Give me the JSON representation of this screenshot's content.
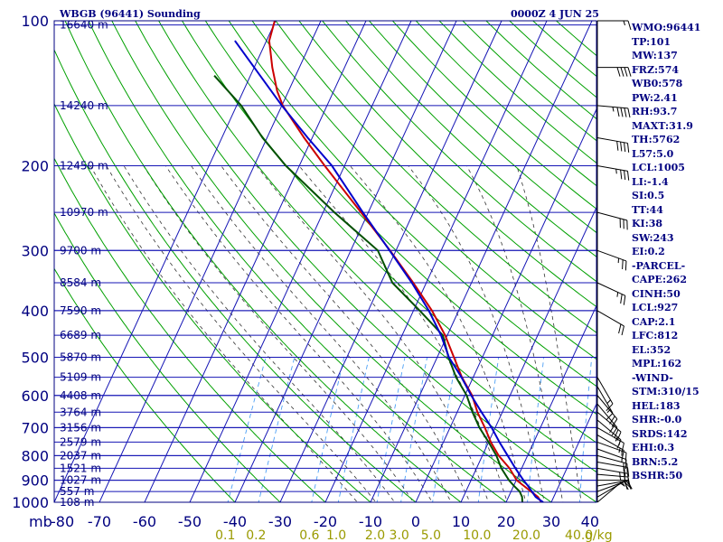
{
  "header": {
    "station": "WBGB (96441) Sounding",
    "time": "0000Z  4 JUN 25"
  },
  "indices": [
    "WMO:96441",
    "TP:101",
    "MW:137",
    "FRZ:574",
    "WB0:578",
    "PW:2.41",
    "RH:93.7",
    "MAXT:31.9",
    "TH:5762",
    "L57:5.0",
    "LCL:1005",
    "LI:-1.4",
    "SI:0.5",
    "TT:44",
    "KI:38",
    "SW:243",
    "EI:0.2",
    "-PARCEL-",
    "CAPE:262",
    "CINH:50",
    "LCL:927",
    "CAP:2.1",
    "LFC:812",
    "EL:352",
    "MPL:162",
    "-WIND-",
    "STM:310/15",
    "HEL:183",
    "SHR:-0.0",
    "SRDS:142",
    "EHI:0.3",
    "BRN:5.2",
    "BSHR:50"
  ],
  "colors": {
    "frame": "#000080",
    "isobar": "#1515b5",
    "dry_adiabat": "#00a000",
    "moist_adiabat": "#333333",
    "mixing_ratio": "#4da0f5",
    "temperature": "#cc0000",
    "dewpoint": "#005000",
    "parcel": "#0000cc",
    "wind": "#000000",
    "mixing_label": "#9a9a00"
  },
  "chart_data": {
    "type": "skew-T log-P sounding",
    "title": "WBGB (96441) Sounding",
    "xlabel": "",
    "ylabel": "mb",
    "temperature_ticks": [
      "-80",
      "-70",
      "-60",
      "-50",
      "-40",
      "-30",
      "-20",
      "-10",
      "0",
      "10",
      "20",
      "30",
      "40"
    ],
    "pressure_ticks": [
      "100",
      "200",
      "300",
      "400",
      "500",
      "600",
      "700",
      "800",
      "900",
      "1000"
    ],
    "ylim": [
      1000,
      100
    ],
    "xlim": [
      -80,
      40
    ],
    "height_labels": [
      {
        "p": 102,
        "label": "16640 m"
      },
      {
        "p": 150,
        "label": "14240 m"
      },
      {
        "p": 200,
        "label": "12450 m"
      },
      {
        "p": 250,
        "label": "10970 m"
      },
      {
        "p": 300,
        "label": "9700 m"
      },
      {
        "p": 350,
        "label": "8584 m"
      },
      {
        "p": 400,
        "label": "7590 m"
      },
      {
        "p": 450,
        "label": "6689 m"
      },
      {
        "p": 500,
        "label": "5870 m"
      },
      {
        "p": 550,
        "label": "5109 m"
      },
      {
        "p": 600,
        "label": "4408 m"
      },
      {
        "p": 650,
        "label": "3764 m"
      },
      {
        "p": 700,
        "label": "3156 m"
      },
      {
        "p": 750,
        "label": "2579 m"
      },
      {
        "p": 800,
        "label": "2037 m"
      },
      {
        "p": 850,
        "label": "1521 m"
      },
      {
        "p": 900,
        "label": "1027 m"
      },
      {
        "p": 950,
        "label": "557 m"
      },
      {
        "p": 1000,
        "label": "108 m"
      }
    ],
    "mixing_ratio_labels": [
      "0.1",
      "0.2",
      "0.6",
      "1.0",
      "2.0",
      "3.0",
      "5.0",
      "10.0",
      "20.0",
      "40.0"
    ],
    "mixing_ratio_values": [
      0.1,
      0.2,
      0.6,
      1.0,
      2.0,
      3.0,
      5.0,
      10.0,
      20.0,
      40.0
    ],
    "mixing_ratio_unit": "g/kg",
    "series": [
      {
        "key": "temperature",
        "points": [
          [
            1005,
            27.5
          ],
          [
            1000,
            27.8
          ],
          [
            975,
            26.5
          ],
          [
            950,
            24.4
          ],
          [
            925,
            22.3
          ],
          [
            900,
            20.1
          ],
          [
            850,
            17.3
          ],
          [
            800,
            13.6
          ],
          [
            750,
            10.5
          ],
          [
            700,
            7.7
          ],
          [
            650,
            4.5
          ],
          [
            600,
            1.6
          ],
          [
            550,
            -2.5
          ],
          [
            500,
            -6.3
          ],
          [
            450,
            -10.5
          ],
          [
            400,
            -15.9
          ],
          [
            350,
            -22.9
          ],
          [
            300,
            -31.3
          ],
          [
            250,
            -41.6
          ],
          [
            200,
            -54.4
          ],
          [
            175,
            -61.8
          ],
          [
            150,
            -69.8
          ],
          [
            140,
            -72.5
          ],
          [
            125,
            -76.0
          ],
          [
            110,
            -79.4
          ],
          [
            100,
            -80.2
          ]
        ]
      },
      {
        "key": "dewpoint",
        "points": [
          [
            1005,
            23.5
          ],
          [
            1000,
            23.6
          ],
          [
            975,
            23.0
          ],
          [
            950,
            21.9
          ],
          [
            925,
            20.1
          ],
          [
            900,
            18.4
          ],
          [
            850,
            15.5
          ],
          [
            800,
            13.1
          ],
          [
            750,
            10.0
          ],
          [
            700,
            6.5
          ],
          [
            650,
            3.4
          ],
          [
            600,
            0.4
          ],
          [
            550,
            -3.8
          ],
          [
            500,
            -7.5
          ],
          [
            450,
            -11.0
          ],
          [
            400,
            -18.6
          ],
          [
            350,
            -27.5
          ],
          [
            300,
            -34.0
          ],
          [
            250,
            -47.5
          ],
          [
            200,
            -63.0
          ],
          [
            175,
            -71.0
          ],
          [
            150,
            -79.0
          ],
          [
            130,
            -88.0
          ]
        ]
      },
      {
        "key": "parcel",
        "points": [
          [
            1000,
            28.2
          ],
          [
            975,
            26.0
          ],
          [
            950,
            24.6
          ],
          [
            925,
            23.2
          ],
          [
            900,
            21.6
          ],
          [
            850,
            18.6
          ],
          [
            800,
            15.6
          ],
          [
            750,
            12.4
          ],
          [
            700,
            9.2
          ],
          [
            650,
            5.4
          ],
          [
            600,
            1.4
          ],
          [
            550,
            -2.6
          ],
          [
            500,
            -7.4
          ],
          [
            450,
            -11.4
          ],
          [
            400,
            -16.6
          ],
          [
            350,
            -23.2
          ],
          [
            300,
            -31.4
          ],
          [
            250,
            -41.2
          ],
          [
            200,
            -52.8
          ],
          [
            175,
            -61.0
          ],
          [
            150,
            -70.0
          ],
          [
            125,
            -80.0
          ],
          [
            110,
            -87.0
          ]
        ]
      }
    ],
    "winds": [
      {
        "p": 1000,
        "dir": 230,
        "spd": 5
      },
      {
        "p": 975,
        "dir": 240,
        "spd": 10
      },
      {
        "p": 950,
        "dir": 250,
        "spd": 15
      },
      {
        "p": 925,
        "dir": 260,
        "spd": 20
      },
      {
        "p": 900,
        "dir": 270,
        "spd": 20
      },
      {
        "p": 875,
        "dir": 275,
        "spd": 25
      },
      {
        "p": 850,
        "dir": 280,
        "spd": 25
      },
      {
        "p": 825,
        "dir": 280,
        "spd": 20
      },
      {
        "p": 800,
        "dir": 285,
        "spd": 20
      },
      {
        "p": 775,
        "dir": 290,
        "spd": 15
      },
      {
        "p": 750,
        "dir": 290,
        "spd": 15
      },
      {
        "p": 725,
        "dir": 300,
        "spd": 15
      },
      {
        "p": 700,
        "dir": 300,
        "spd": 15
      },
      {
        "p": 675,
        "dir": 310,
        "spd": 15
      },
      {
        "p": 650,
        "dir": 310,
        "spd": 20
      },
      {
        "p": 625,
        "dir": 320,
        "spd": 20
      },
      {
        "p": 600,
        "dir": 320,
        "spd": 20
      },
      {
        "p": 575,
        "dir": 330,
        "spd": 15
      },
      {
        "p": 550,
        "dir": 330,
        "spd": 15
      },
      {
        "p": 400,
        "dir": 300,
        "spd": 20
      },
      {
        "p": 350,
        "dir": 295,
        "spd": 25
      },
      {
        "p": 300,
        "dir": 290,
        "spd": 25
      },
      {
        "p": 250,
        "dir": 285,
        "spd": 30
      },
      {
        "p": 200,
        "dir": 280,
        "spd": 35
      },
      {
        "p": 175,
        "dir": 280,
        "spd": 40
      },
      {
        "p": 150,
        "dir": 275,
        "spd": 45
      },
      {
        "p": 125,
        "dir": 270,
        "spd": 40
      },
      {
        "p": 100,
        "dir": 270,
        "spd": 15
      }
    ]
  }
}
